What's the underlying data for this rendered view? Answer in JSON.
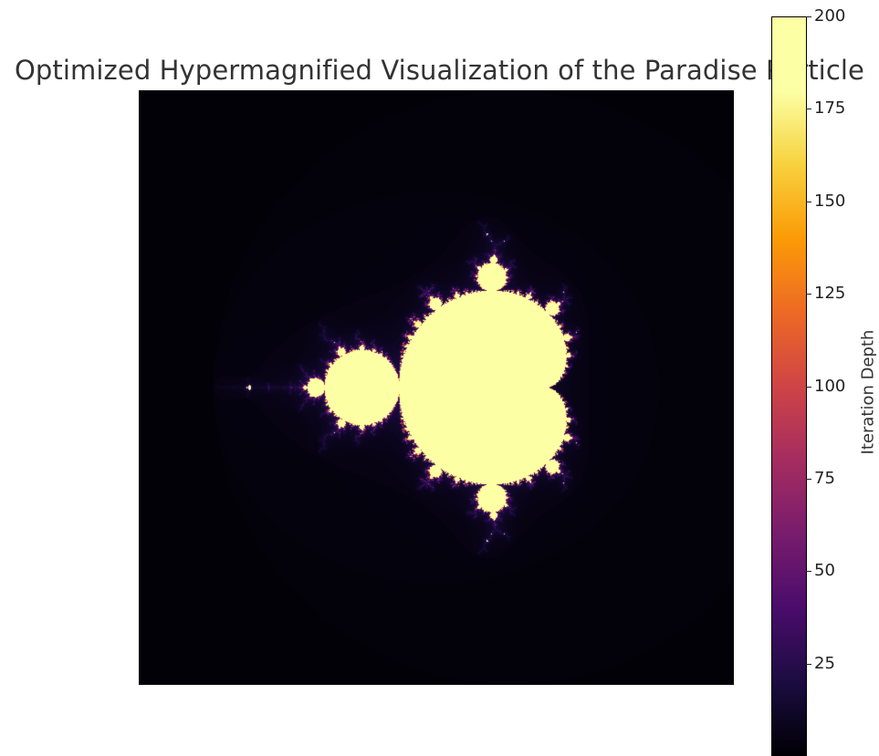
{
  "chart_data": {
    "type": "heatmap",
    "title": "Optimized Hypermagnified Visualization of the Paradise Particle",
    "xlabel": "",
    "ylabel": "",
    "colormap": "inferno",
    "colorbar": {
      "label": "Iteration Depth",
      "range": [
        0,
        200
      ],
      "ticks": [
        25,
        50,
        75,
        100,
        125,
        150,
        175,
        200
      ],
      "tick_labels": [
        "25",
        "50",
        "75",
        "100",
        "125",
        "150",
        "175",
        "200"
      ]
    },
    "fractal": {
      "set": "mandelbrot",
      "max_iter": 200,
      "real_range": [
        -2.5,
        1.5
      ],
      "imag_range": [
        -2.0,
        2.0
      ]
    },
    "colors": {
      "background": "#000004",
      "interior": "#fcffa4"
    }
  }
}
